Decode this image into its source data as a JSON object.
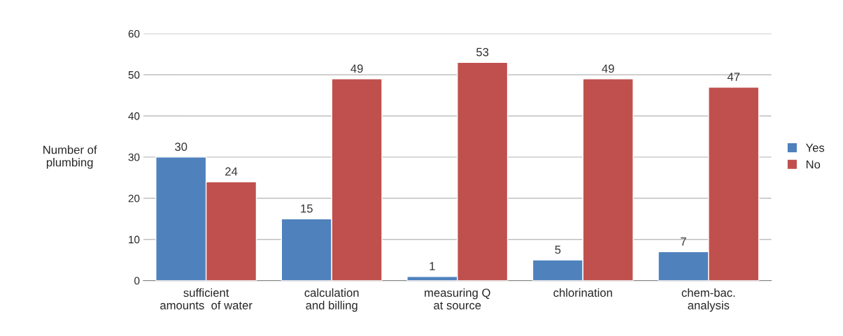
{
  "chart_data": {
    "type": "bar",
    "ylabel": "Number of\nplumbing",
    "categories": [
      "sufficient\namounts  of water",
      "calculation\nand billing",
      "measuring Q\nat source",
      "chlorination",
      "chem-bac.\nanalysis"
    ],
    "series": [
      {
        "name": "Yes",
        "color": "#4f81bd",
        "values": [
          30,
          15,
          1,
          5,
          7
        ]
      },
      {
        "name": "No",
        "color": "#c0504d",
        "values": [
          24,
          49,
          53,
          49,
          47
        ]
      }
    ],
    "ylim": [
      0,
      60
    ],
    "yticks": [
      0,
      10,
      20,
      30,
      40,
      50,
      60
    ],
    "grid": "y",
    "legend": "right",
    "data_labels": true
  }
}
